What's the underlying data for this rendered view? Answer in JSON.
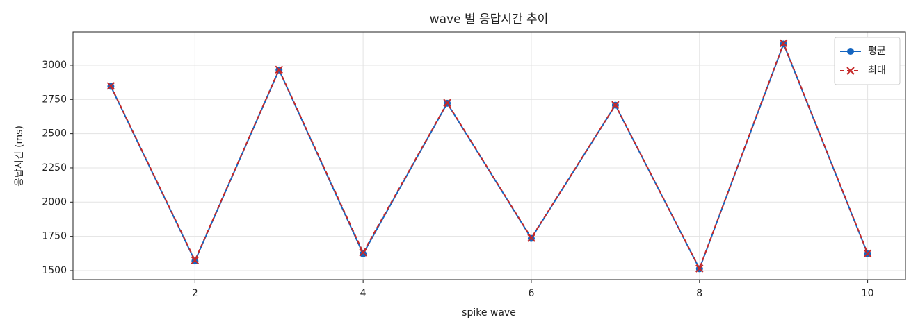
{
  "chart_data": {
    "type": "line",
    "title": "wave 별 응답시간 추이",
    "x_label": "spike wave",
    "y_label": "응답시간 (ms)",
    "x": [
      1,
      2,
      3,
      4,
      5,
      6,
      7,
      8,
      9,
      10
    ],
    "series": [
      {
        "name": "평균",
        "color": "#1565c0",
        "line_style": "solid",
        "marker": "circle",
        "values": [
          2845,
          1570,
          2965,
          1622,
          2722,
          1735,
          2708,
          1513,
          3155,
          1622
        ]
      },
      {
        "name": "최대",
        "color": "#c62828",
        "line_style": "dashed",
        "marker": "x",
        "values": [
          2848,
          1575,
          2968,
          1632,
          2725,
          1738,
          2710,
          1515,
          3160,
          1625
        ]
      }
    ],
    "xlim": [
      0.55,
      10.45
    ],
    "ylim": [
      1434,
      3243
    ],
    "xticks": [
      2,
      4,
      6,
      8,
      10
    ],
    "yticks": [
      1500,
      1750,
      2000,
      2250,
      2500,
      2750,
      3000
    ],
    "grid": true,
    "legend": "upper right"
  }
}
